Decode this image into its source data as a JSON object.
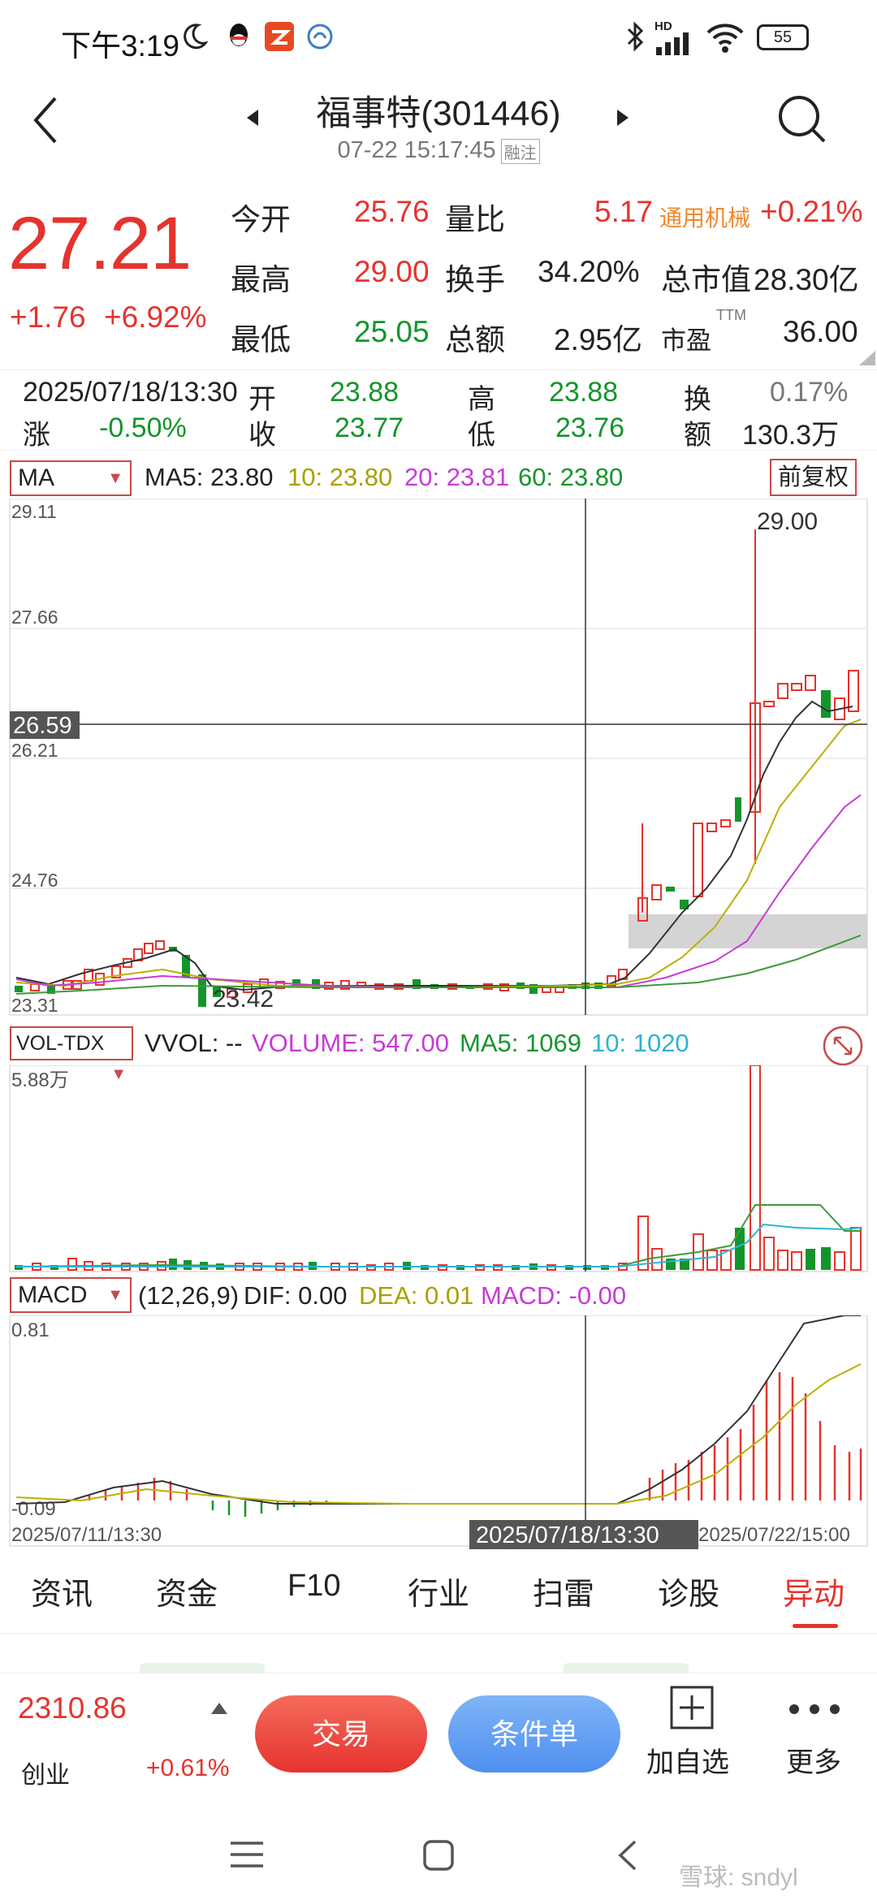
{
  "status_bar": {
    "time": "下午3:19",
    "battery": "55",
    "network": "HD",
    "icons": [
      "moon-icon",
      "qq-icon",
      "app-red-icon",
      "app-blue-icon",
      "bluetooth-icon",
      "signal-icon",
      "wifi-icon",
      "battery-icon"
    ]
  },
  "header": {
    "title": "福事特(301446)",
    "datetime": "07-22 15:17:45",
    "tag": "融注"
  },
  "quote": {
    "price": "27.21",
    "change": "+1.76",
    "change_pct": "+6.92%",
    "open_label": "今开",
    "open": "25.76",
    "high_label": "最高",
    "high": "29.00",
    "low_label": "最低",
    "low": "25.05",
    "vol_ratio_label": "量比",
    "vol_ratio": "5.17",
    "turnover_label": "换手",
    "turnover": "34.20%",
    "amount_label": "总额",
    "amount": "2.95亿",
    "industry": "通用机械",
    "industry_pct": "+0.21%",
    "mktcap_label": "总市值",
    "mktcap": "28.30亿",
    "pe_label": "市盈",
    "pe_sup": "TTM",
    "pe": "36.00"
  },
  "info_bar": {
    "datetime": "2025/07/18/13:30",
    "rise_label": "涨",
    "rise": "-0.50%",
    "open_label": "开",
    "open": "23.88",
    "close_label": "收",
    "close": "23.77",
    "high_label": "高",
    "high": "23.88",
    "low_label": "低",
    "low": "23.76",
    "turnover_label1": "换",
    "turnover_label2": "额",
    "turnover": "0.17%",
    "amount": "130.3万"
  },
  "ma_panel": {
    "selector": "MA",
    "ma5": "MA5: 23.80",
    "ma10": "10: 23.80",
    "ma20": "20: 23.81",
    "ma60": "60: 23.80",
    "adjust_button": "前复权",
    "y_top": "29.11",
    "y2": "27.66",
    "y3": "26.21",
    "y4": "24.76",
    "y_bottom": "23.31",
    "cursor_price": "26.59",
    "high_label": "29.00",
    "low_label": "23.42"
  },
  "vol_panel": {
    "selector": "VOL-TDX",
    "vvol": "VVOL: --",
    "volume": "VOLUME: 547.00",
    "ma5": "MA5: 1069",
    "ma10": "10: 1020",
    "y_top": "5.88万"
  },
  "macd_panel": {
    "selector": "MACD",
    "params": "(12,26,9)",
    "dif": "DIF: 0.00",
    "dea": "DEA: 0.01",
    "macd": "MACD: -0.00",
    "y_top": "0.81",
    "y_bottom": "-0.09",
    "x_left": "2025/07/11/13:30",
    "x_cursor": "2025/07/18/13:30",
    "x_right": "2025/07/22/15:00"
  },
  "tabs": [
    "资讯",
    "资金",
    "F10",
    "行业",
    "扫雷",
    "诊股",
    "异动"
  ],
  "active_tab": 6,
  "bottom_bar": {
    "index_value": "2310.86",
    "index_name": "创业",
    "index_pct": "+0.61%",
    "trade_button": "交易",
    "condition_button": "条件单",
    "watch_label": "加自选",
    "more_label": "更多"
  },
  "watermark": "雪球: sndyl",
  "colors": {
    "up": "#e5332e",
    "down": "#14952b",
    "ma5": "#222222",
    "ma10": "#b9b000",
    "ma20": "#c83ad8",
    "ma60": "#3f9a3a"
  }
}
